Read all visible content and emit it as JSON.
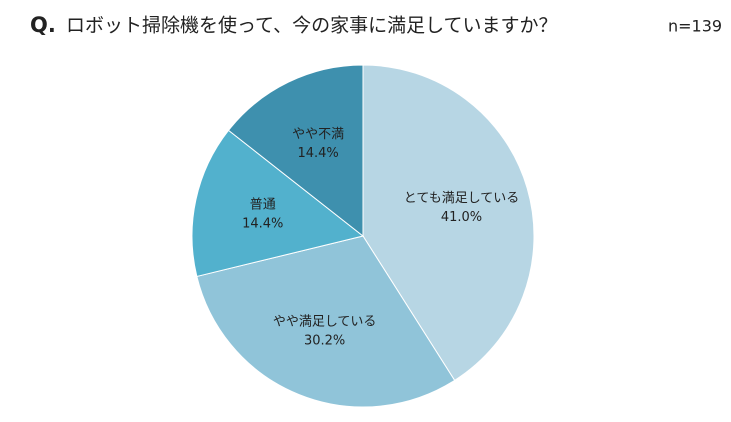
{
  "chart_data": {
    "type": "pie",
    "question_label": "Q.",
    "title": "ロボット掃除機を使って、今の家事に満足していますか？",
    "subtitle": "n=139",
    "categories": [
      "とても満足している",
      "やや満足している",
      "普通",
      "やや不満"
    ],
    "values": [
      41.0,
      30.2,
      14.4,
      14.4
    ],
    "value_labels": [
      "41.0%",
      "30.2%",
      "14.4%",
      "14.4%"
    ],
    "colors": [
      "#b7d6e4",
      "#90c4d9",
      "#52b1cd",
      "#3e90ae"
    ]
  }
}
